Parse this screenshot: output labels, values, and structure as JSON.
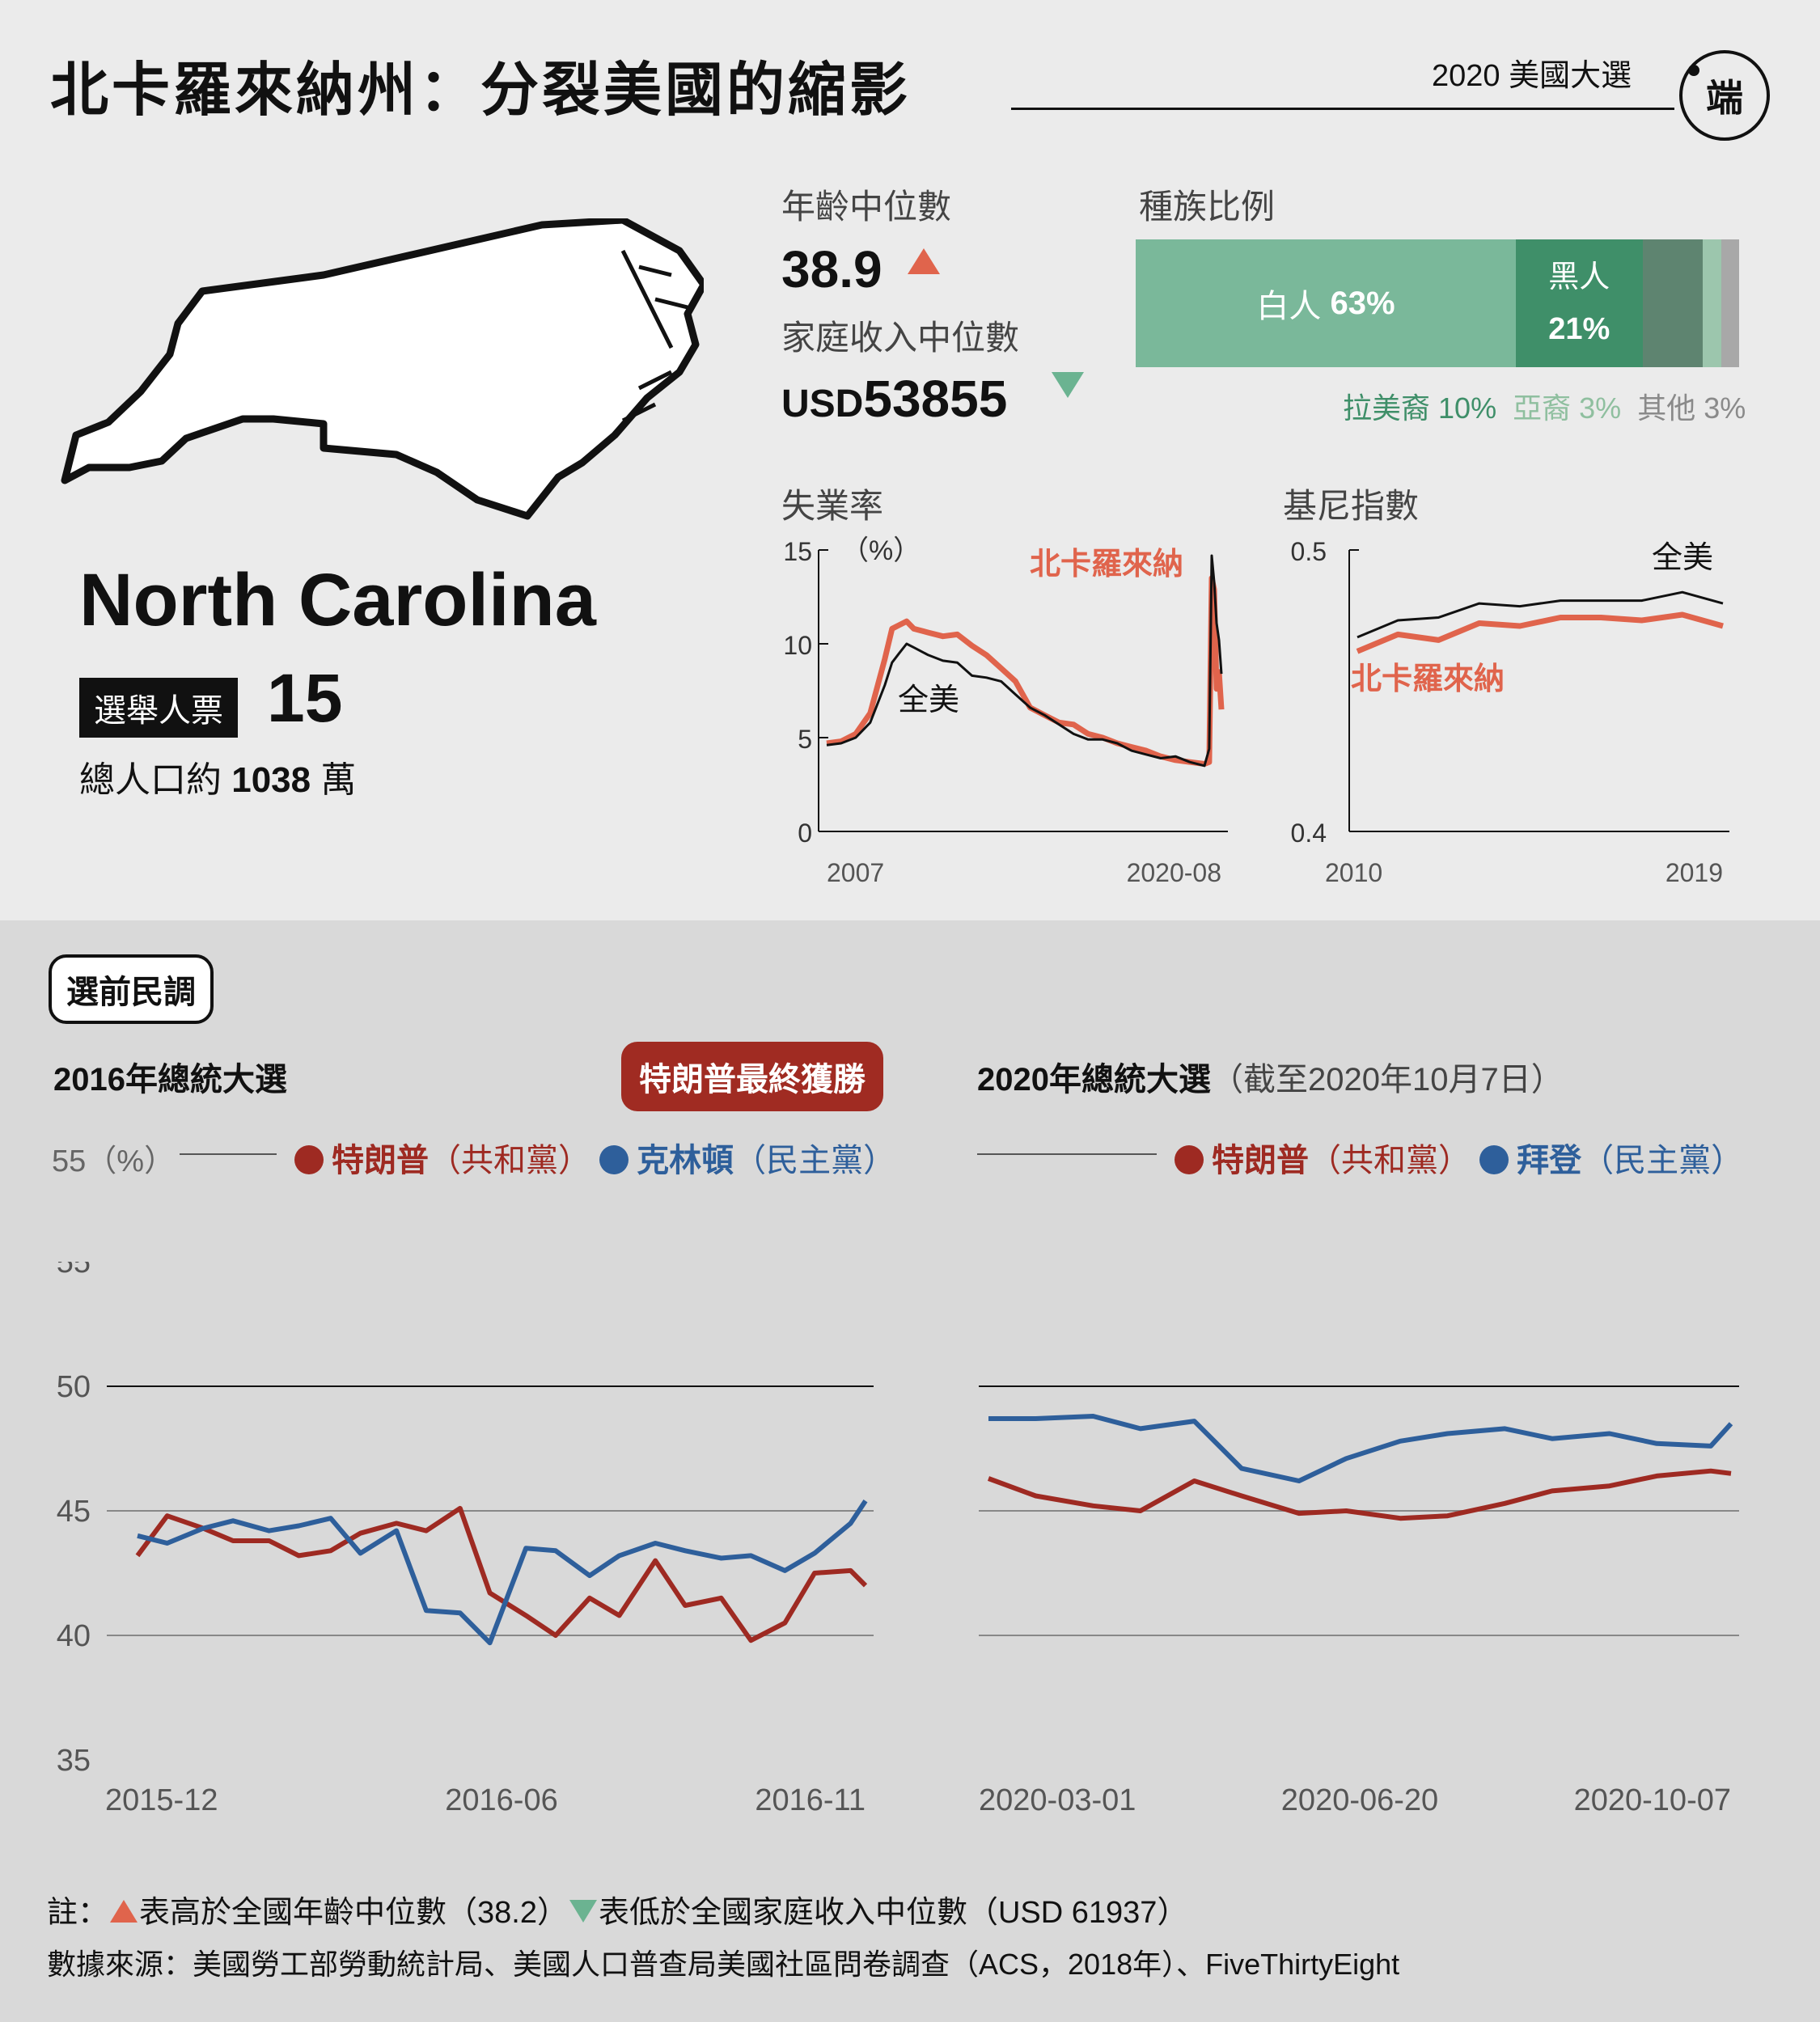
{
  "header": {
    "title": "北卡羅來納州：分裂美國的縮影",
    "series_label": "2020 美國大選",
    "logo_text": "端"
  },
  "state": {
    "name": "North Carolina",
    "electoral_label": "選舉人票",
    "electoral_votes": "15",
    "population_prefix": "總人口約",
    "population_value": "1038",
    "population_unit": "萬"
  },
  "stats": {
    "median_age_label": "年齡中位數",
    "median_age": "38.9",
    "median_age_trend": "up",
    "median_income_label": "家庭收入中位數",
    "median_income_prefix": "USD",
    "median_income": "53855",
    "median_income_trend": "down"
  },
  "colors": {
    "nc_orange": "#e0644c",
    "us_black": "#111111",
    "trump_red": "#9e2a22",
    "dem_blue": "#2e5f9b",
    "white_pop": "#7ab89a",
    "black_pop": "#3f8f69",
    "hispanic_pop": "#5e8470",
    "asian_pop": "#9cc6ad",
    "other_pop": "#a8a8a8",
    "up_arrow": "#e0644c",
    "down_arrow": "#6bb391"
  },
  "race": {
    "title": "種族比例",
    "segments": [
      {
        "label": "白人",
        "value": 63,
        "display": "63%"
      },
      {
        "label": "黑人",
        "value": 21,
        "display": "21%"
      },
      {
        "label": "拉美裔",
        "value": 10,
        "display": "10%"
      },
      {
        "label": "亞裔",
        "value": 3,
        "display": "3%"
      },
      {
        "label": "其他",
        "value": 3,
        "display": "3%"
      }
    ]
  },
  "polls": {
    "section_label": "選前民調",
    "y_unit": "（%）",
    "title_2016": "2016年總統大選",
    "winner_badge": "特朗普最終獲勝",
    "trump_name": "特朗普",
    "rep_party": "（共和黨）",
    "clinton_name": "克林頓",
    "dem_party": "（民主黨）",
    "title_2020": "2020年總統大選",
    "subtitle_2020": "（截至2020年10月7日）",
    "biden_name": "拜登"
  },
  "notes": {
    "note_prefix": "註：",
    "note_up": "表高於全國年齡中位數（38.2）",
    "note_down": "表低於全國家庭收入中位數（USD 61937）",
    "source": "數據來源：美國勞工部勞動統計局、美國人口普查局美國社區問卷調查（ACS，2018年）、FiveThirtyEight"
  },
  "chart_data": [
    {
      "type": "line",
      "title": "失業率",
      "unit": "（%）",
      "ylim": [
        0,
        15
      ],
      "yticks": [
        0,
        5,
        10,
        15
      ],
      "xtick_labels": [
        "2007",
        "2020-08"
      ],
      "x": [
        "2007-01",
        "2007-07",
        "2008-01",
        "2008-07",
        "2009-01",
        "2009-04",
        "2009-07",
        "2009-10",
        "2010-01",
        "2010-07",
        "2011-01",
        "2011-07",
        "2012-01",
        "2012-07",
        "2013-01",
        "2013-07",
        "2014-01",
        "2014-07",
        "2015-01",
        "2015-07",
        "2016-01",
        "2016-07",
        "2017-01",
        "2017-07",
        "2018-01",
        "2018-07",
        "2019-01",
        "2019-07",
        "2020-01",
        "2020-03",
        "2020-04",
        "2020-05",
        "2020-06",
        "2020-07",
        "2020-08"
      ],
      "series": [
        {
          "name": "北卡羅來納",
          "values": [
            4.7,
            4.8,
            5.2,
            6.3,
            9.2,
            10.8,
            11.0,
            11.2,
            10.8,
            10.6,
            10.4,
            10.5,
            9.9,
            9.4,
            8.7,
            8.0,
            6.6,
            6.2,
            5.8,
            5.7,
            5.2,
            5.0,
            4.7,
            4.5,
            4.3,
            4.0,
            3.8,
            3.7,
            3.6,
            3.7,
            13.5,
            12.9,
            7.6,
            8.5,
            6.5
          ]
        },
        {
          "name": "全美",
          "values": [
            4.6,
            4.7,
            5.0,
            5.8,
            7.8,
            9.0,
            9.5,
            10.0,
            9.8,
            9.4,
            9.1,
            9.0,
            8.3,
            8.2,
            8.0,
            7.3,
            6.6,
            6.2,
            5.7,
            5.2,
            4.9,
            4.9,
            4.7,
            4.3,
            4.1,
            3.9,
            4.0,
            3.7,
            3.5,
            4.4,
            14.7,
            13.3,
            11.1,
            10.2,
            8.4
          ]
        }
      ]
    },
    {
      "type": "line",
      "title": "基尼指數",
      "ylim": [
        0.4,
        0.5
      ],
      "yticks": [
        0.4,
        0.5
      ],
      "xtick_labels": [
        "2010",
        "2019"
      ],
      "x": [
        2010,
        2011,
        2012,
        2013,
        2014,
        2015,
        2016,
        2017,
        2018,
        2019
      ],
      "series": [
        {
          "name": "全美",
          "values": [
            0.469,
            0.475,
            0.476,
            0.481,
            0.48,
            0.482,
            0.482,
            0.482,
            0.485,
            0.481
          ]
        },
        {
          "name": "北卡羅來納",
          "values": [
            0.464,
            0.47,
            0.468,
            0.474,
            0.473,
            0.476,
            0.476,
            0.475,
            0.477,
            0.473
          ]
        }
      ]
    },
    {
      "type": "line",
      "title": "2016年總統大選",
      "ylim": [
        35,
        55
      ],
      "yticks": [
        35,
        40,
        45,
        50,
        55
      ],
      "xtick_labels": [
        "2015-12",
        "2016-06",
        "2016-11"
      ],
      "x": [
        "2015-12-01",
        "2015-12-15",
        "2016-01-01",
        "2016-01-15",
        "2016-02-01",
        "2016-02-15",
        "2016-03-01",
        "2016-03-15",
        "2016-04-01",
        "2016-04-15",
        "2016-05-01",
        "2016-05-15",
        "2016-06-01",
        "2016-06-15",
        "2016-07-01",
        "2016-07-15",
        "2016-08-01",
        "2016-08-15",
        "2016-09-01",
        "2016-09-15",
        "2016-10-01",
        "2016-10-15",
        "2016-11-01",
        "2016-11-08"
      ],
      "series": [
        {
          "name": "特朗普",
          "values": [
            43.2,
            44.8,
            44.3,
            43.8,
            43.8,
            43.2,
            43.4,
            44.1,
            44.5,
            44.2,
            45.1,
            41.7,
            40.8,
            40.0,
            41.5,
            40.8,
            43.0,
            41.2,
            41.5,
            39.8,
            40.5,
            42.5,
            42.6,
            42.0
          ]
        },
        {
          "name": "克林頓",
          "values": [
            44.0,
            43.7,
            44.3,
            44.6,
            44.2,
            44.4,
            44.7,
            43.3,
            44.2,
            41.0,
            40.9,
            39.7,
            43.5,
            43.4,
            42.4,
            43.2,
            43.7,
            43.4,
            43.1,
            43.2,
            42.6,
            43.3,
            44.5,
            45.4
          ]
        }
      ]
    },
    {
      "type": "line",
      "title": "2020年總統大選",
      "ylim": [
        35,
        55
      ],
      "yticks": [
        35,
        40,
        45,
        50,
        55
      ],
      "xtick_labels": [
        "2020-03-01",
        "2020-06-20",
        "2020-10-07"
      ],
      "x": [
        "2020-03-01",
        "2020-03-15",
        "2020-04-01",
        "2020-04-15",
        "2020-05-01",
        "2020-05-15",
        "2020-06-01",
        "2020-06-15",
        "2020-07-01",
        "2020-07-15",
        "2020-08-01",
        "2020-08-15",
        "2020-09-01",
        "2020-09-15",
        "2020-10-01",
        "2020-10-07"
      ],
      "series": [
        {
          "name": "特朗普",
          "values": [
            46.3,
            45.6,
            45.2,
            45.0,
            46.2,
            45.6,
            44.9,
            45.0,
            44.7,
            44.8,
            45.3,
            45.8,
            46.0,
            46.4,
            46.6,
            46.5
          ]
        },
        {
          "name": "拜登",
          "values": [
            48.7,
            48.7,
            48.8,
            48.3,
            48.6,
            46.7,
            46.2,
            47.1,
            47.8,
            48.1,
            48.3,
            47.9,
            48.1,
            47.7,
            47.6,
            48.5
          ]
        }
      ]
    }
  ]
}
